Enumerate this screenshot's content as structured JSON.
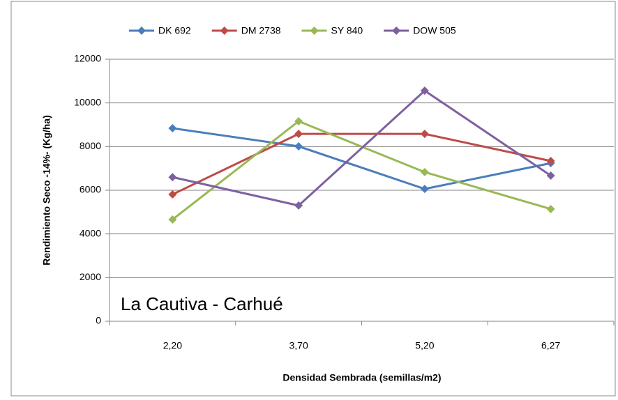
{
  "chart_data": {
    "type": "line",
    "y_label": "Rendimiento Seco -14%- (Kg/ha)",
    "x_label": "Densidad Sembrada (semillas/m2)",
    "annotation": "La Cautiva - Carhué",
    "categories": [
      "2,20",
      "3,70",
      "5,20",
      "6,27"
    ],
    "series": [
      {
        "name": "DK 692",
        "color": "#4a7ebb",
        "values": [
          8840,
          8010,
          6060,
          7240
        ]
      },
      {
        "name": "DM 2738",
        "color": "#be4b48",
        "values": [
          5810,
          8580,
          8580,
          7340
        ]
      },
      {
        "name": "SY 840",
        "color": "#98b954",
        "values": [
          4660,
          9160,
          6830,
          5140
        ]
      },
      {
        "name": "DOW 505",
        "color": "#7d60a0",
        "values": [
          6600,
          5300,
          10560,
          6670
        ]
      }
    ],
    "ylim": [
      0,
      12000
    ],
    "yticks": [
      0,
      2000,
      4000,
      6000,
      8000,
      10000,
      12000
    ],
    "grid": true,
    "legend": "top"
  }
}
